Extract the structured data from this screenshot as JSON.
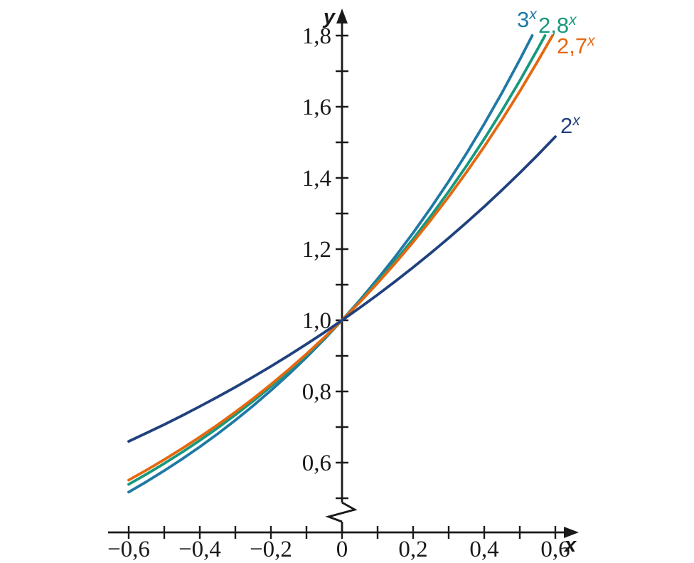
{
  "figure": {
    "background_color": "#ffffff",
    "axis_color": "#1a1a1a"
  },
  "chart_data": {
    "type": "line",
    "title": "",
    "xlabel": "x",
    "ylabel": "y",
    "xlim": [
      -0.6,
      0.6
    ],
    "ylim": [
      0.5,
      1.8
    ],
    "grid": false,
    "decimal_separator": ",",
    "y_axis_break_below": 0.5,
    "x_ticks": [
      -0.6,
      -0.5,
      -0.4,
      -0.3,
      -0.2,
      -0.1,
      0,
      0.1,
      0.2,
      0.3,
      0.4,
      0.5,
      0.6
    ],
    "y_ticks": [
      0.5,
      0.6,
      0.7,
      0.8,
      0.9,
      1.0,
      1.1,
      1.2,
      1.3,
      1.4,
      1.5,
      1.6,
      1.7,
      1.8
    ],
    "x_tick_labels": [
      {
        "v": -0.6,
        "label": "−0,6"
      },
      {
        "v": -0.4,
        "label": "−0,4"
      },
      {
        "v": -0.2,
        "label": "−0,2"
      },
      {
        "v": 0,
        "label": "0"
      },
      {
        "v": 0.2,
        "label": "0,2"
      },
      {
        "v": 0.4,
        "label": "0,4"
      },
      {
        "v": 0.6,
        "label": "0,6"
      }
    ],
    "y_tick_labels": [
      {
        "v": 0.6,
        "label": "0,6"
      },
      {
        "v": 0.8,
        "label": "0,8"
      },
      {
        "v": 1.0,
        "label": "1,0"
      },
      {
        "v": 1.2,
        "label": "1,2"
      },
      {
        "v": 1.4,
        "label": "1,4"
      },
      {
        "v": 1.6,
        "label": "1,6"
      },
      {
        "v": 1.8,
        "label": "1,8"
      }
    ],
    "legend_position": "curve-end-annotations",
    "series": [
      {
        "id": "3x",
        "name": "3^x",
        "label_base": "3",
        "label_sup": "x",
        "color": "#1F78A5",
        "points": [
          [
            -0.6,
            0.5173
          ],
          [
            -0.55,
            0.5465
          ],
          [
            -0.5,
            0.5774
          ],
          [
            -0.45,
            0.61
          ],
          [
            -0.4,
            0.6444
          ],
          [
            -0.35,
            0.6808
          ],
          [
            -0.3,
            0.7192
          ],
          [
            -0.25,
            0.7598
          ],
          [
            -0.2,
            0.8027
          ],
          [
            -0.15,
            0.848
          ],
          [
            -0.1,
            0.896
          ],
          [
            -0.05,
            0.9466
          ],
          [
            0,
            1
          ],
          [
            0.05,
            1.0565
          ],
          [
            0.1,
            1.1161
          ],
          [
            0.15,
            1.1791
          ],
          [
            0.2,
            1.2457
          ],
          [
            0.25,
            1.3161
          ],
          [
            0.3,
            1.3904
          ],
          [
            0.35,
            1.4688
          ],
          [
            0.4,
            1.5518
          ],
          [
            0.45,
            1.6394
          ],
          [
            0.5,
            1.7321
          ],
          [
            0.535,
            1.8
          ]
        ]
      },
      {
        "id": "2-8x",
        "name": "2,8^x",
        "label_base": "2,8",
        "label_sup": "x",
        "color": "#16997C",
        "points": [
          [
            -0.6,
            0.5391
          ],
          [
            -0.55,
            0.5676
          ],
          [
            -0.5,
            0.5976
          ],
          [
            -0.45,
            0.6292
          ],
          [
            -0.4,
            0.6624
          ],
          [
            -0.35,
            0.6974
          ],
          [
            -0.3,
            0.7343
          ],
          [
            -0.25,
            0.7731
          ],
          [
            -0.2,
            0.8139
          ],
          [
            -0.15,
            0.8569
          ],
          [
            -0.1,
            0.9022
          ],
          [
            -0.05,
            0.9498
          ],
          [
            0,
            1
          ],
          [
            0.05,
            1.0528
          ],
          [
            0.1,
            1.1084
          ],
          [
            0.15,
            1.167
          ],
          [
            0.2,
            1.2286
          ],
          [
            0.25,
            1.2935
          ],
          [
            0.3,
            1.3618
          ],
          [
            0.35,
            1.4338
          ],
          [
            0.4,
            1.5095
          ],
          [
            0.45,
            1.5893
          ],
          [
            0.5,
            1.6733
          ],
          [
            0.55,
            1.7617
          ],
          [
            0.571,
            1.8
          ]
        ]
      },
      {
        "id": "2-7x",
        "name": "2,7^x",
        "label_base": "2,7",
        "label_sup": "x",
        "color": "#E5670F",
        "points": [
          [
            -0.6,
            0.5511
          ],
          [
            -0.55,
            0.5791
          ],
          [
            -0.5,
            0.6086
          ],
          [
            -0.45,
            0.6396
          ],
          [
            -0.4,
            0.6721
          ],
          [
            -0.35,
            0.7063
          ],
          [
            -0.3,
            0.7423
          ],
          [
            -0.25,
            0.7801
          ],
          [
            -0.2,
            0.8198
          ],
          [
            -0.15,
            0.8616
          ],
          [
            -0.1,
            0.9054
          ],
          [
            -0.05,
            0.9516
          ],
          [
            0,
            1
          ],
          [
            0.05,
            1.0509
          ],
          [
            0.1,
            1.1045
          ],
          [
            0.15,
            1.1607
          ],
          [
            0.2,
            1.2199
          ],
          [
            0.25,
            1.2821
          ],
          [
            0.3,
            1.3473
          ],
          [
            0.35,
            1.416
          ],
          [
            0.4,
            1.488
          ],
          [
            0.45,
            1.5638
          ],
          [
            0.5,
            1.6435
          ],
          [
            0.55,
            1.7272
          ],
          [
            0.592,
            1.8
          ]
        ]
      },
      {
        "id": "2x",
        "name": "2^x",
        "label_base": "2",
        "label_sup": "x",
        "color": "#21417E",
        "points": [
          [
            -0.6,
            0.6598
          ],
          [
            -0.55,
            0.6832
          ],
          [
            -0.5,
            0.7071
          ],
          [
            -0.45,
            0.732
          ],
          [
            -0.4,
            0.7579
          ],
          [
            -0.35,
            0.7846
          ],
          [
            -0.3,
            0.8123
          ],
          [
            -0.25,
            0.8409
          ],
          [
            -0.2,
            0.8706
          ],
          [
            -0.15,
            0.9012
          ],
          [
            -0.1,
            0.933
          ],
          [
            -0.05,
            0.9659
          ],
          [
            0,
            1
          ],
          [
            0.05,
            1.0353
          ],
          [
            0.1,
            1.0718
          ],
          [
            0.15,
            1.1096
          ],
          [
            0.2,
            1.1487
          ],
          [
            0.25,
            1.1892
          ],
          [
            0.3,
            1.2311
          ],
          [
            0.35,
            1.2746
          ],
          [
            0.4,
            1.3195
          ],
          [
            0.45,
            1.366
          ],
          [
            0.5,
            1.4142
          ],
          [
            0.55,
            1.4641
          ],
          [
            0.6,
            1.5157
          ]
        ]
      }
    ]
  }
}
